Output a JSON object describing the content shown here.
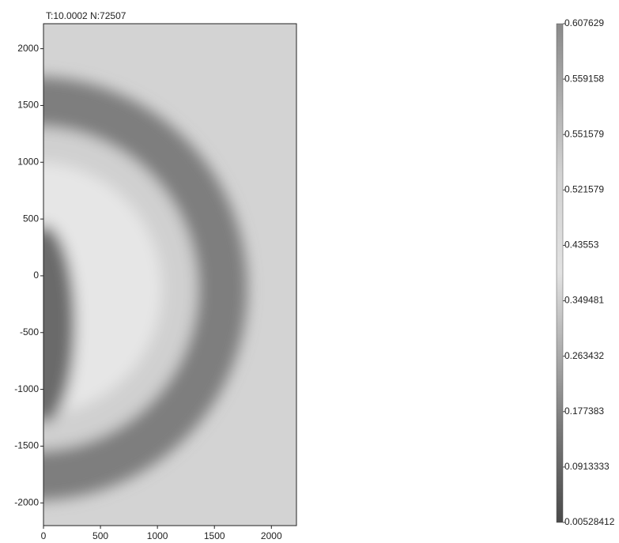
{
  "chart_data": {
    "type": "heatmap",
    "title": "T:10.0002 N:72507",
    "xlim": [
      0,
      2220
    ],
    "ylim": [
      -2200,
      2220
    ],
    "xticks": [
      0,
      500,
      1000,
      1500,
      2000
    ],
    "yticks": [
      2000,
      1500,
      1000,
      500,
      0,
      -500,
      -1000,
      -1500,
      -2000
    ],
    "colorbar_ticks": [
      0.607629,
      0.559158,
      0.551579,
      0.521579,
      0.43553,
      0.349481,
      0.263432,
      0.177383,
      0.0913333,
      0.00528412
    ]
  }
}
